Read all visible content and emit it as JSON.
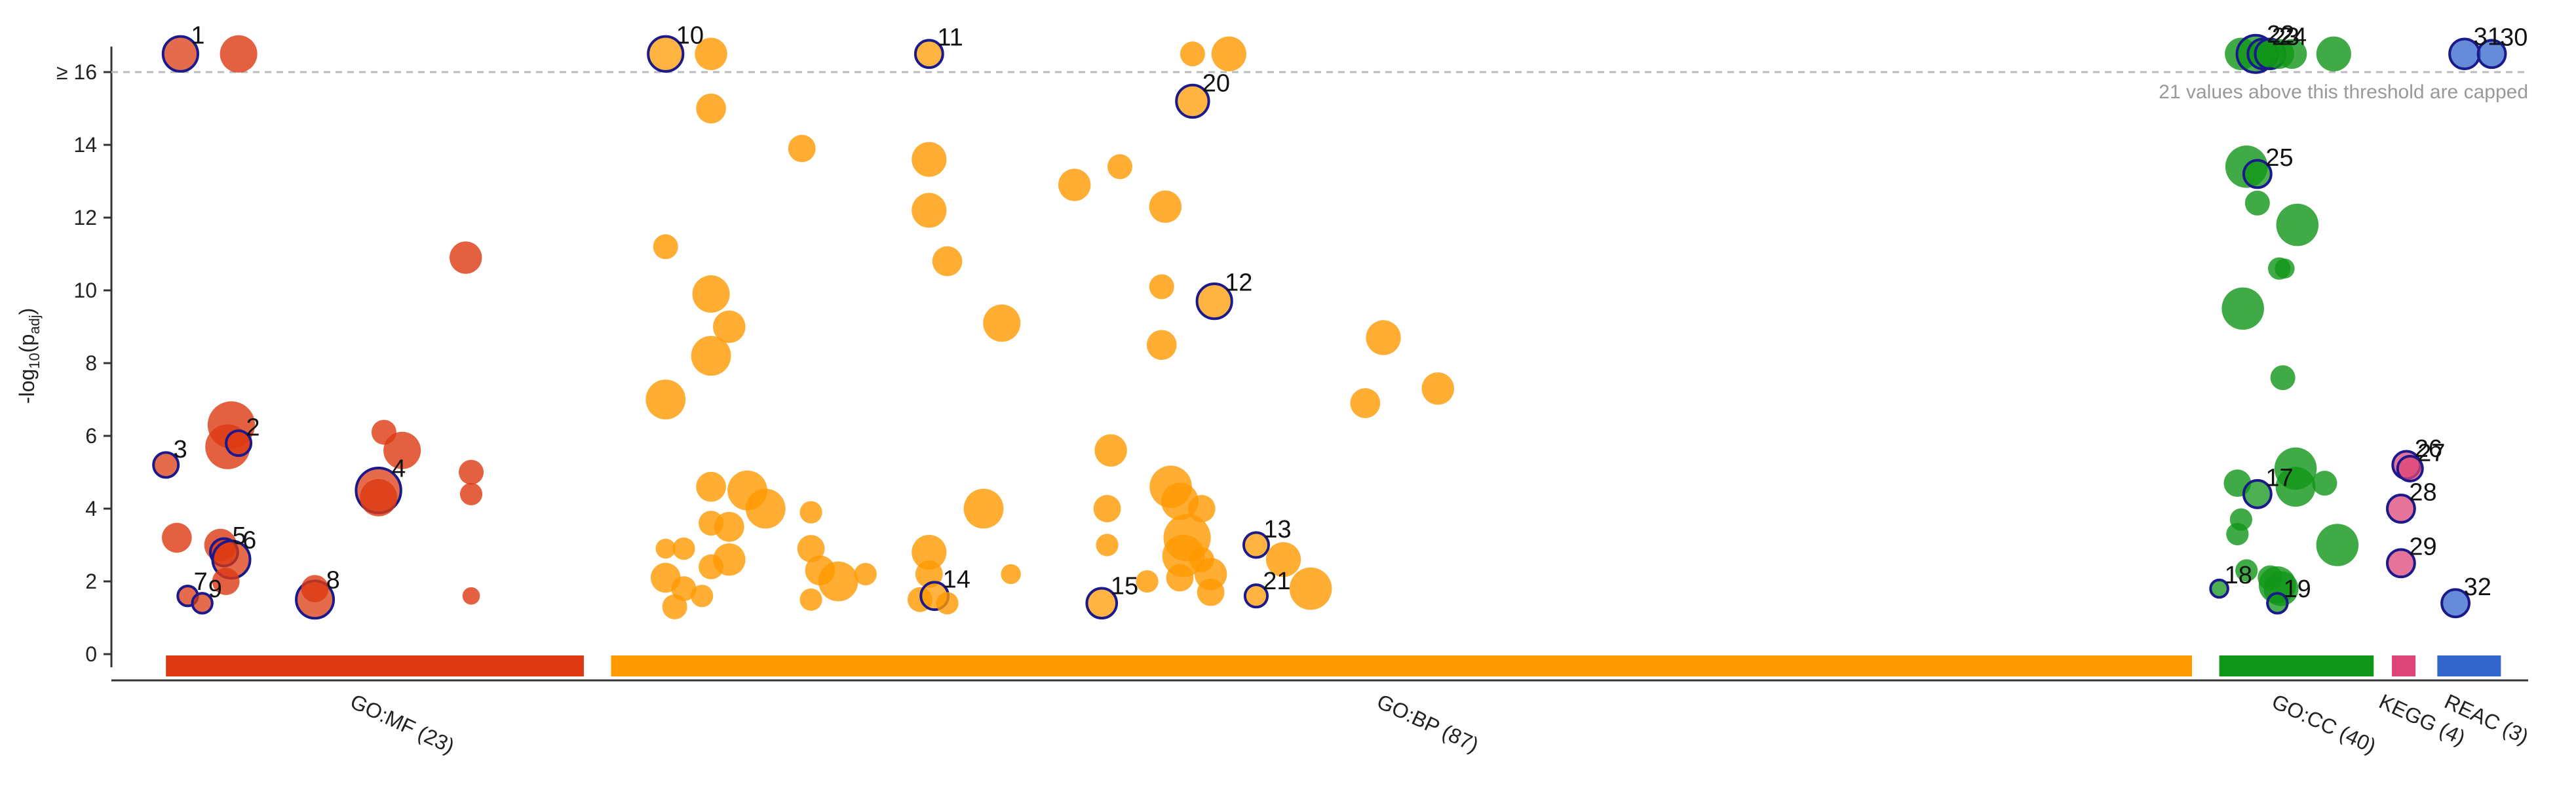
{
  "chart_data": {
    "type": "scatter",
    "title": "",
    "xlabel": "",
    "ylabel": "-log10(padj)",
    "ylim": [
      0,
      17
    ],
    "yticks": [
      0,
      2,
      4,
      6,
      8,
      10,
      12,
      14
    ],
    "ycap_label": "≥ 16",
    "cap_note": "21 values above this threshold are capped",
    "grid": false,
    "legend": "none",
    "sources": [
      {
        "name": "GO:MF (23)",
        "color": "#dc3912",
        "x_start": 0.0,
        "x_end": 23.0
      },
      {
        "name": "GO:BP (87)",
        "color": "#ff9900",
        "x_start": 24.5,
        "x_end": 111.5
      },
      {
        "name": "GO:CC (40)",
        "color": "#109618",
        "x_start": 113.0,
        "x_end": 121.5
      },
      {
        "name": "KEGG (4)",
        "color": "#dd4477",
        "x_start": 122.5,
        "x_end": 123.8
      },
      {
        "name": "REAC (3)",
        "color": "#3366cc",
        "x_start": 125.0,
        "x_end": 128.5
      }
    ],
    "points": [
      {
        "x": 0.8,
        "y": 16.5,
        "s": 14,
        "src": 0,
        "label": "1"
      },
      {
        "x": 4.0,
        "y": 16.5,
        "s": 15,
        "src": 0
      },
      {
        "x": 3.6,
        "y": 6.3,
        "s": 19,
        "src": 0
      },
      {
        "x": 3.4,
        "y": 5.7,
        "s": 18,
        "src": 0
      },
      {
        "x": 4.0,
        "y": 5.8,
        "s": 10,
        "src": 0,
        "label": "2"
      },
      {
        "x": 0.0,
        "y": 5.2,
        "s": 10,
        "src": 0,
        "label": "3"
      },
      {
        "x": 11.7,
        "y": 4.5,
        "s": 18,
        "src": 0,
        "label": "4"
      },
      {
        "x": 11.7,
        "y": 4.3,
        "s": 15,
        "src": 0
      },
      {
        "x": 12.0,
        "y": 6.1,
        "s": 10,
        "src": 0
      },
      {
        "x": 13.0,
        "y": 5.6,
        "s": 15,
        "src": 0
      },
      {
        "x": 0.6,
        "y": 3.2,
        "s": 12,
        "src": 0
      },
      {
        "x": 3.0,
        "y": 3.0,
        "s": 13,
        "src": 0
      },
      {
        "x": 3.2,
        "y": 2.8,
        "s": 11,
        "src": 0,
        "label": "5"
      },
      {
        "x": 3.6,
        "y": 2.6,
        "s": 15,
        "src": 0,
        "label": "6"
      },
      {
        "x": 3.3,
        "y": 2.0,
        "s": 11,
        "src": 0
      },
      {
        "x": 1.2,
        "y": 1.6,
        "s": 8,
        "src": 0,
        "label": "7"
      },
      {
        "x": 2.0,
        "y": 1.4,
        "s": 8,
        "src": 0,
        "label": "9"
      },
      {
        "x": 8.2,
        "y": 1.5,
        "s": 15,
        "src": 0,
        "label": "8"
      },
      {
        "x": 8.2,
        "y": 1.8,
        "s": 11,
        "src": 0
      },
      {
        "x": 16.5,
        "y": 10.9,
        "s": 13,
        "src": 0
      },
      {
        "x": 16.8,
        "y": 5.0,
        "s": 10,
        "src": 0
      },
      {
        "x": 16.8,
        "y": 4.4,
        "s": 9,
        "src": 0
      },
      {
        "x": 16.8,
        "y": 1.6,
        "s": 7,
        "src": 0
      },
      {
        "x": 27.5,
        "y": 16.5,
        "s": 14,
        "src": 1,
        "label": "10"
      },
      {
        "x": 30.0,
        "y": 16.5,
        "s": 13,
        "src": 1
      },
      {
        "x": 30.0,
        "y": 15.0,
        "s": 12,
        "src": 1
      },
      {
        "x": 27.5,
        "y": 11.2,
        "s": 10,
        "src": 1
      },
      {
        "x": 30.0,
        "y": 9.9,
        "s": 15,
        "src": 1
      },
      {
        "x": 31.0,
        "y": 9.0,
        "s": 13,
        "src": 1
      },
      {
        "x": 30.0,
        "y": 8.2,
        "s": 16,
        "src": 1
      },
      {
        "x": 27.5,
        "y": 7.0,
        "s": 16,
        "src": 1
      },
      {
        "x": 35.0,
        "y": 13.9,
        "s": 11,
        "src": 1
      },
      {
        "x": 42.0,
        "y": 16.5,
        "s": 11,
        "src": 1,
        "label": "11"
      },
      {
        "x": 42.0,
        "y": 13.6,
        "s": 14,
        "src": 1
      },
      {
        "x": 42.0,
        "y": 12.2,
        "s": 14,
        "src": 1
      },
      {
        "x": 43.0,
        "y": 10.8,
        "s": 12,
        "src": 1
      },
      {
        "x": 46.0,
        "y": 9.1,
        "s": 15,
        "src": 1
      },
      {
        "x": 50.0,
        "y": 12.9,
        "s": 13,
        "src": 1
      },
      {
        "x": 52.5,
        "y": 13.4,
        "s": 10,
        "src": 1
      },
      {
        "x": 56.5,
        "y": 16.5,
        "s": 10,
        "src": 1
      },
      {
        "x": 58.5,
        "y": 16.5,
        "s": 14,
        "src": 1
      },
      {
        "x": 56.5,
        "y": 15.2,
        "s": 13,
        "src": 1,
        "label": "20"
      },
      {
        "x": 55.0,
        "y": 12.3,
        "s": 13,
        "src": 1
      },
      {
        "x": 54.8,
        "y": 10.1,
        "s": 10,
        "src": 1
      },
      {
        "x": 54.8,
        "y": 8.5,
        "s": 12,
        "src": 1
      },
      {
        "x": 57.7,
        "y": 9.7,
        "s": 14,
        "src": 1,
        "label": "12"
      },
      {
        "x": 67.0,
        "y": 8.7,
        "s": 14,
        "src": 1
      },
      {
        "x": 70.0,
        "y": 7.3,
        "s": 13,
        "src": 1
      },
      {
        "x": 66.0,
        "y": 6.9,
        "s": 12,
        "src": 1
      },
      {
        "x": 52.0,
        "y": 5.6,
        "s": 13,
        "src": 1
      },
      {
        "x": 51.8,
        "y": 4.0,
        "s": 11,
        "src": 1
      },
      {
        "x": 51.8,
        "y": 3.0,
        "s": 9,
        "src": 1
      },
      {
        "x": 51.5,
        "y": 1.4,
        "s": 12,
        "src": 1,
        "label": "15"
      },
      {
        "x": 54.0,
        "y": 2.0,
        "s": 9,
        "src": 1
      },
      {
        "x": 55.3,
        "y": 4.6,
        "s": 17,
        "src": 1
      },
      {
        "x": 55.8,
        "y": 4.2,
        "s": 15,
        "src": 1
      },
      {
        "x": 56.2,
        "y": 3.2,
        "s": 19,
        "src": 1
      },
      {
        "x": 56.0,
        "y": 2.7,
        "s": 17,
        "src": 1
      },
      {
        "x": 55.8,
        "y": 2.1,
        "s": 11,
        "src": 1
      },
      {
        "x": 57.0,
        "y": 4.0,
        "s": 11,
        "src": 1
      },
      {
        "x": 57.0,
        "y": 2.6,
        "s": 10,
        "src": 1
      },
      {
        "x": 57.5,
        "y": 2.2,
        "s": 13,
        "src": 1
      },
      {
        "x": 57.5,
        "y": 1.7,
        "s": 11,
        "src": 1
      },
      {
        "x": 60.0,
        "y": 3.0,
        "s": 10,
        "src": 1,
        "label": "13"
      },
      {
        "x": 60.0,
        "y": 1.6,
        "s": 9,
        "src": 1,
        "label": "21"
      },
      {
        "x": 61.5,
        "y": 2.6,
        "s": 14,
        "src": 1
      },
      {
        "x": 63.0,
        "y": 1.8,
        "s": 17,
        "src": 1
      },
      {
        "x": 30.0,
        "y": 4.6,
        "s": 12,
        "src": 1
      },
      {
        "x": 32.0,
        "y": 4.5,
        "s": 16,
        "src": 1
      },
      {
        "x": 33.0,
        "y": 4.0,
        "s": 16,
        "src": 1
      },
      {
        "x": 30.0,
        "y": 3.6,
        "s": 10,
        "src": 1
      },
      {
        "x": 31.0,
        "y": 3.5,
        "s": 12,
        "src": 1
      },
      {
        "x": 31.0,
        "y": 2.6,
        "s": 13,
        "src": 1
      },
      {
        "x": 30.0,
        "y": 2.4,
        "s": 10,
        "src": 1
      },
      {
        "x": 27.5,
        "y": 2.9,
        "s": 8,
        "src": 1
      },
      {
        "x": 28.5,
        "y": 2.9,
        "s": 9,
        "src": 1
      },
      {
        "x": 27.5,
        "y": 2.1,
        "s": 12,
        "src": 1
      },
      {
        "x": 28.5,
        "y": 1.8,
        "s": 10,
        "src": 1
      },
      {
        "x": 28.0,
        "y": 1.3,
        "s": 10,
        "src": 1
      },
      {
        "x": 29.5,
        "y": 1.6,
        "s": 9,
        "src": 1
      },
      {
        "x": 35.5,
        "y": 3.9,
        "s": 9,
        "src": 1
      },
      {
        "x": 35.5,
        "y": 2.9,
        "s": 11,
        "src": 1
      },
      {
        "x": 36.0,
        "y": 2.3,
        "s": 12,
        "src": 1
      },
      {
        "x": 37.0,
        "y": 2.0,
        "s": 16,
        "src": 1
      },
      {
        "x": 35.5,
        "y": 1.5,
        "s": 9,
        "src": 1
      },
      {
        "x": 38.5,
        "y": 2.2,
        "s": 9,
        "src": 1
      },
      {
        "x": 42.0,
        "y": 2.8,
        "s": 14,
        "src": 1
      },
      {
        "x": 42.0,
        "y": 2.2,
        "s": 11,
        "src": 1
      },
      {
        "x": 41.5,
        "y": 1.5,
        "s": 10,
        "src": 1
      },
      {
        "x": 42.3,
        "y": 1.6,
        "s": 11,
        "src": 1,
        "label": "14"
      },
      {
        "x": 43.0,
        "y": 1.4,
        "s": 9,
        "src": 1
      },
      {
        "x": 45.0,
        "y": 4.0,
        "s": 16,
        "src": 1
      },
      {
        "x": 46.5,
        "y": 2.2,
        "s": 8,
        "src": 1
      },
      {
        "x": 114.2,
        "y": 16.5,
        "s": 13,
        "src": 2
      },
      {
        "x": 115.0,
        "y": 16.5,
        "s": 15,
        "src": 2,
        "label": "22"
      },
      {
        "x": 115.4,
        "y": 16.5,
        "s": 12,
        "src": 2,
        "label": "23"
      },
      {
        "x": 115.8,
        "y": 16.5,
        "s": 12,
        "src": 2,
        "label": "24"
      },
      {
        "x": 116.3,
        "y": 16.5,
        "s": 12,
        "src": 2
      },
      {
        "x": 117.0,
        "y": 16.5,
        "s": 12,
        "src": 2
      },
      {
        "x": 119.3,
        "y": 16.5,
        "s": 14,
        "src": 2
      },
      {
        "x": 114.5,
        "y": 13.4,
        "s": 17,
        "src": 2
      },
      {
        "x": 115.1,
        "y": 13.2,
        "s": 11,
        "src": 2,
        "label": "25"
      },
      {
        "x": 115.1,
        "y": 12.4,
        "s": 10,
        "src": 2
      },
      {
        "x": 117.3,
        "y": 11.8,
        "s": 17,
        "src": 2
      },
      {
        "x": 116.3,
        "y": 10.6,
        "s": 9,
        "src": 2
      },
      {
        "x": 116.6,
        "y": 10.6,
        "s": 8,
        "src": 2
      },
      {
        "x": 114.3,
        "y": 9.5,
        "s": 17,
        "src": 2
      },
      {
        "x": 116.5,
        "y": 7.6,
        "s": 10,
        "src": 2
      },
      {
        "x": 114.0,
        "y": 4.7,
        "s": 11,
        "src": 2
      },
      {
        "x": 115.1,
        "y": 4.4,
        "s": 11,
        "src": 2,
        "label": "17"
      },
      {
        "x": 117.2,
        "y": 5.1,
        "s": 17,
        "src": 2
      },
      {
        "x": 117.2,
        "y": 4.6,
        "s": 16,
        "src": 2
      },
      {
        "x": 118.8,
        "y": 4.7,
        "s": 10,
        "src": 2
      },
      {
        "x": 114.2,
        "y": 3.7,
        "s": 9,
        "src": 2
      },
      {
        "x": 114.0,
        "y": 3.3,
        "s": 9,
        "src": 2
      },
      {
        "x": 119.5,
        "y": 3.0,
        "s": 17,
        "src": 2
      },
      {
        "x": 114.5,
        "y": 2.3,
        "s": 9,
        "src": 2
      },
      {
        "x": 115.8,
        "y": 2.1,
        "s": 10,
        "src": 2
      },
      {
        "x": 116.2,
        "y": 1.9,
        "s": 15,
        "src": 2
      },
      {
        "x": 116.4,
        "y": 1.8,
        "s": 14,
        "src": 2
      },
      {
        "x": 113.0,
        "y": 1.8,
        "s": 7,
        "src": 2,
        "label": "18"
      },
      {
        "x": 116.2,
        "y": 1.4,
        "s": 8,
        "src": 2,
        "label": "19"
      },
      {
        "x": 123.3,
        "y": 5.2,
        "s": 11,
        "src": 3,
        "label": "26"
      },
      {
        "x": 123.5,
        "y": 5.1,
        "s": 10,
        "src": 3,
        "label": "27"
      },
      {
        "x": 123.0,
        "y": 4.0,
        "s": 11,
        "src": 3,
        "label": "28"
      },
      {
        "x": 123.0,
        "y": 2.5,
        "s": 11,
        "src": 3,
        "label": "29"
      },
      {
        "x": 126.5,
        "y": 16.5,
        "s": 12,
        "src": 4,
        "label": "31"
      },
      {
        "x": 128.0,
        "y": 16.5,
        "s": 11,
        "src": 4,
        "label": "30"
      },
      {
        "x": 126.0,
        "y": 1.4,
        "s": 11,
        "src": 4,
        "label": "32"
      }
    ]
  }
}
